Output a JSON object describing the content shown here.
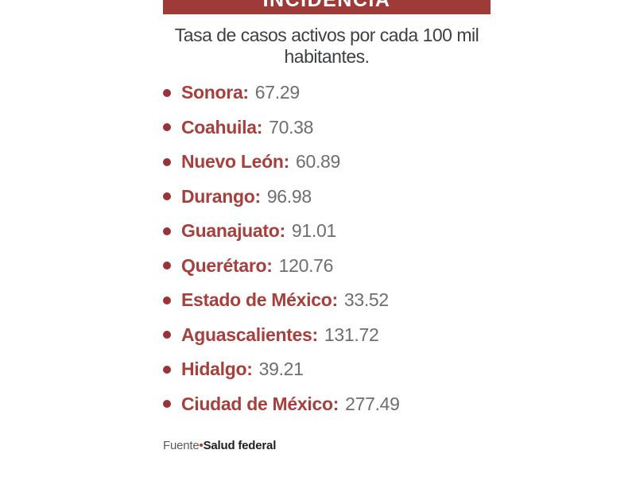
{
  "header": {
    "title": "INCIDENCIA"
  },
  "subtitle": "Tasa de casos activos por cada 100 mil habitantes.",
  "items": [
    {
      "name": "Sonora:",
      "value": "67.29"
    },
    {
      "name": "Coahuila:",
      "value": "70.38"
    },
    {
      "name": "Nuevo León:",
      "value": "60.89"
    },
    {
      "name": "Durango:",
      "value": "96.98"
    },
    {
      "name": "Guanajuato:",
      "value": "91.01"
    },
    {
      "name": "Querétaro:",
      "value": "120.76"
    },
    {
      "name": "Estado de México:",
      "value": "33.52"
    },
    {
      "name": "Aguascalientes:",
      "value": "131.72"
    },
    {
      "name": "Hidalgo:",
      "value": "39.21"
    },
    {
      "name": "Ciudad de México:",
      "value": "277.49"
    }
  ],
  "source": {
    "prefix": "Fuente",
    "separator": "•",
    "name": "Salud federal"
  },
  "colors": {
    "header_red": "#9e3a38",
    "bullet_red": "#9a3337",
    "state_red": "#a6403d",
    "value_gray": "#6d6e71",
    "subtitle_gray": "#3f4042"
  },
  "chart_data": {
    "type": "table",
    "title": "INCIDENCIA",
    "subtitle": "Tasa de casos activos por cada 100 mil habitantes.",
    "categories": [
      "Sonora",
      "Coahuila",
      "Nuevo León",
      "Durango",
      "Guanajuato",
      "Querétaro",
      "Estado de México",
      "Aguascalientes",
      "Hidalgo",
      "Ciudad de México"
    ],
    "values": [
      67.29,
      70.38,
      60.89,
      96.98,
      91.01,
      120.76,
      33.52,
      131.72,
      39.21,
      277.49
    ],
    "unit": "casos activos por cada 100 mil habitantes",
    "source": "Fuente•Salud federal"
  }
}
